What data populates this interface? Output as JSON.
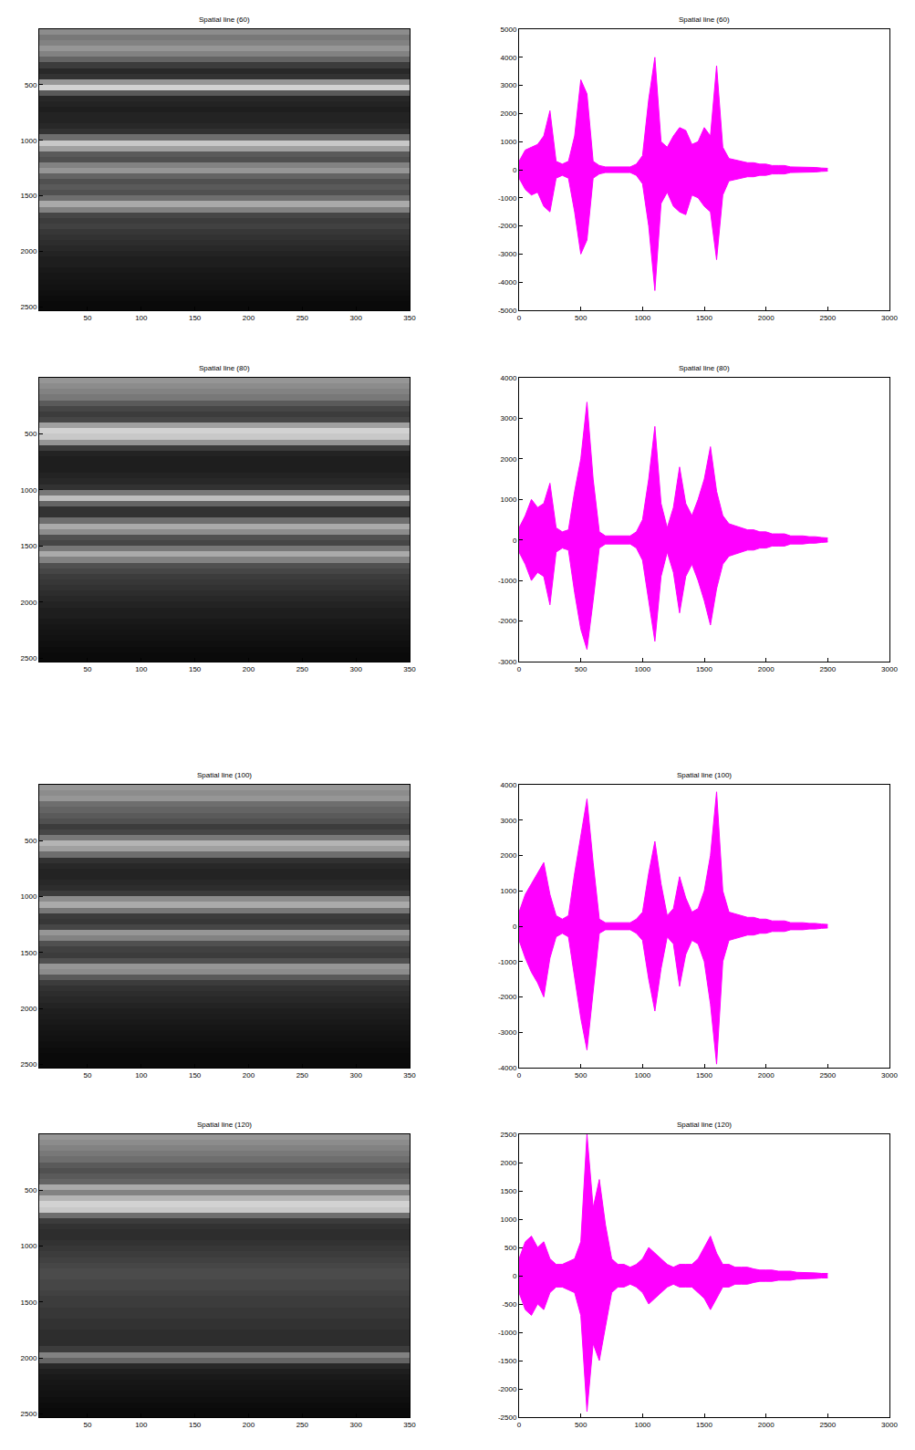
{
  "chart_data": [
    {
      "type": "heatmap",
      "title": "Spatial line (60)",
      "xlim": [
        5,
        350
      ],
      "xticks": [
        50,
        100,
        150,
        200,
        250,
        300,
        350
      ],
      "ylim": [
        0,
        2530
      ],
      "yticks": [
        500,
        1000,
        1500,
        2000,
        2500
      ],
      "grid": false,
      "zlim": [
        0,
        255
      ],
      "y": [
        25,
        75,
        125,
        175,
        225,
        275,
        325,
        375,
        425,
        475,
        525,
        575,
        625,
        675,
        725,
        775,
        825,
        875,
        925,
        975,
        1025,
        1075,
        1125,
        1175,
        1225,
        1275,
        1325,
        1375,
        1425,
        1475,
        1525,
        1575,
        1625,
        1675,
        1725,
        1775,
        1825,
        1875,
        1925,
        1975,
        2025,
        2075,
        2125,
        2175,
        2225,
        2275,
        2325,
        2375,
        2425,
        2475,
        2525
      ],
      "z": [
        140,
        120,
        130,
        150,
        130,
        100,
        60,
        40,
        50,
        150,
        210,
        90,
        40,
        35,
        30,
        35,
        35,
        40,
        50,
        110,
        200,
        160,
        90,
        80,
        130,
        150,
        100,
        80,
        90,
        80,
        110,
        170,
        130,
        70,
        60,
        65,
        55,
        50,
        45,
        40,
        35,
        30,
        30,
        25,
        22,
        20,
        18,
        15,
        12,
        10,
        10
      ]
    },
    {
      "type": "area",
      "title": "Spatial line (60)",
      "xlim": [
        0,
        3000
      ],
      "xticks": [
        0,
        500,
        1000,
        1500,
        2000,
        2500,
        3000
      ],
      "ylim": [
        -5000,
        5000
      ],
      "yticks": [
        -5000,
        -4000,
        -3000,
        -2000,
        -1000,
        0,
        1000,
        2000,
        3000,
        4000,
        5000
      ],
      "grid": false,
      "color": "#ff00ff",
      "x": [
        0,
        50,
        100,
        150,
        200,
        250,
        300,
        350,
        400,
        450,
        500,
        550,
        600,
        650,
        700,
        750,
        800,
        850,
        900,
        950,
        1000,
        1050,
        1100,
        1150,
        1200,
        1250,
        1300,
        1350,
        1400,
        1450,
        1500,
        1550,
        1600,
        1650,
        1700,
        1750,
        1800,
        1850,
        1900,
        1950,
        2000,
        2050,
        2100,
        2150,
        2200,
        2250,
        2300,
        2350,
        2400,
        2450,
        2500
      ],
      "upper": [
        300,
        700,
        800,
        900,
        1200,
        2100,
        300,
        200,
        300,
        1200,
        3200,
        2700,
        300,
        150,
        100,
        100,
        100,
        100,
        100,
        200,
        500,
        2500,
        4000,
        1000,
        800,
        1200,
        1500,
        1400,
        900,
        1000,
        1500,
        1200,
        3700,
        800,
        400,
        350,
        300,
        250,
        250,
        200,
        200,
        150,
        150,
        150,
        100,
        100,
        100,
        80,
        80,
        60,
        50
      ],
      "lower": [
        -300,
        -700,
        -900,
        -800,
        -1300,
        -1500,
        -300,
        -200,
        -300,
        -1500,
        -3000,
        -2500,
        -300,
        -150,
        -100,
        -100,
        -100,
        -100,
        -100,
        -200,
        -500,
        -2000,
        -4300,
        -1200,
        -800,
        -1300,
        -1500,
        -1600,
        -900,
        -1000,
        -1300,
        -1500,
        -3200,
        -900,
        -400,
        -350,
        -300,
        -250,
        -250,
        -200,
        -200,
        -150,
        -150,
        -150,
        -100,
        -100,
        -100,
        -80,
        -80,
        -60,
        -50
      ]
    },
    {
      "type": "heatmap",
      "title": "Spatial line (80)",
      "xlim": [
        5,
        350
      ],
      "xticks": [
        50,
        100,
        150,
        200,
        250,
        300,
        350
      ],
      "ylim": [
        0,
        2530
      ],
      "yticks": [
        500,
        1000,
        1500,
        2000,
        2500
      ],
      "grid": false,
      "zlim": [
        0,
        255
      ],
      "y": [
        25,
        75,
        125,
        175,
        225,
        275,
        325,
        375,
        425,
        475,
        525,
        575,
        625,
        675,
        725,
        775,
        825,
        875,
        925,
        975,
        1025,
        1075,
        1125,
        1175,
        1225,
        1275,
        1325,
        1375,
        1425,
        1475,
        1525,
        1575,
        1625,
        1675,
        1725,
        1775,
        1825,
        1875,
        1925,
        1975,
        2025,
        2075,
        2125,
        2175,
        2225,
        2275,
        2325,
        2375,
        2425,
        2475,
        2525
      ],
      "z": [
        150,
        140,
        130,
        120,
        90,
        70,
        60,
        70,
        160,
        210,
        200,
        150,
        60,
        35,
        30,
        30,
        30,
        35,
        40,
        50,
        120,
        190,
        100,
        50,
        50,
        110,
        170,
        140,
        80,
        70,
        120,
        170,
        130,
        80,
        70,
        60,
        55,
        50,
        45,
        40,
        35,
        30,
        30,
        25,
        22,
        20,
        18,
        15,
        12,
        10,
        10
      ]
    },
    {
      "type": "area",
      "title": "Spatial line (80)",
      "xlim": [
        0,
        3000
      ],
      "xticks": [
        0,
        500,
        1000,
        1500,
        2000,
        2500,
        3000
      ],
      "ylim": [
        -3000,
        4000
      ],
      "yticks": [
        -3000,
        -2000,
        -1000,
        0,
        1000,
        2000,
        3000,
        4000
      ],
      "grid": false,
      "color": "#ff00ff",
      "x": [
        0,
        50,
        100,
        150,
        200,
        250,
        300,
        350,
        400,
        450,
        500,
        550,
        600,
        650,
        700,
        750,
        800,
        850,
        900,
        950,
        1000,
        1050,
        1100,
        1150,
        1200,
        1250,
        1300,
        1350,
        1400,
        1450,
        1500,
        1550,
        1600,
        1650,
        1700,
        1750,
        1800,
        1850,
        1900,
        1950,
        2000,
        2050,
        2100,
        2150,
        2200,
        2250,
        2300,
        2350,
        2400,
        2450,
        2500
      ],
      "upper": [
        300,
        600,
        1000,
        800,
        900,
        1400,
        300,
        200,
        250,
        1200,
        2000,
        3400,
        1500,
        200,
        100,
        100,
        100,
        100,
        100,
        200,
        500,
        1500,
        2800,
        900,
        300,
        800,
        1800,
        900,
        600,
        1000,
        1500,
        2300,
        1200,
        600,
        400,
        350,
        300,
        250,
        250,
        200,
        200,
        150,
        150,
        150,
        100,
        100,
        100,
        80,
        80,
        60,
        50
      ],
      "lower": [
        -300,
        -600,
        -1000,
        -800,
        -900,
        -1600,
        -300,
        -200,
        -250,
        -1300,
        -2200,
        -2700,
        -1500,
        -200,
        -100,
        -100,
        -100,
        -100,
        -100,
        -200,
        -500,
        -1500,
        -2500,
        -900,
        -300,
        -800,
        -1800,
        -900,
        -600,
        -1000,
        -1500,
        -2100,
        -1200,
        -600,
        -400,
        -350,
        -300,
        -250,
        -250,
        -200,
        -200,
        -150,
        -150,
        -150,
        -100,
        -100,
        -100,
        -80,
        -80,
        -60,
        -50
      ]
    },
    {
      "type": "heatmap",
      "title": "Spatial line (100)",
      "xlim": [
        5,
        350
      ],
      "xticks": [
        50,
        100,
        150,
        200,
        250,
        300,
        350
      ],
      "ylim": [
        0,
        2530
      ],
      "yticks": [
        500,
        1000,
        1500,
        2000,
        2500
      ],
      "grid": false,
      "zlim": [
        0,
        255
      ],
      "y": [
        25,
        75,
        125,
        175,
        225,
        275,
        325,
        375,
        425,
        475,
        525,
        575,
        625,
        675,
        725,
        775,
        825,
        875,
        925,
        975,
        1025,
        1075,
        1125,
        1175,
        1225,
        1275,
        1325,
        1375,
        1425,
        1475,
        1525,
        1575,
        1625,
        1675,
        1725,
        1775,
        1825,
        1875,
        1925,
        1975,
        2025,
        2075,
        2125,
        2175,
        2225,
        2275,
        2325,
        2375,
        2425,
        2475,
        2525
      ],
      "z": [
        150,
        140,
        150,
        110,
        100,
        90,
        80,
        60,
        70,
        120,
        180,
        160,
        110,
        50,
        40,
        35,
        35,
        40,
        45,
        60,
        140,
        170,
        120,
        60,
        55,
        70,
        150,
        130,
        80,
        65,
        60,
        80,
        150,
        140,
        90,
        60,
        50,
        45,
        40,
        35,
        30,
        28,
        25,
        22,
        20,
        18,
        15,
        12,
        10,
        10,
        10
      ]
    },
    {
      "type": "area",
      "title": "Spatial line (100)",
      "xlim": [
        0,
        3000
      ],
      "xticks": [
        0,
        500,
        1000,
        1500,
        2000,
        2500,
        3000
      ],
      "ylim": [
        -4000,
        4000
      ],
      "yticks": [
        -4000,
        -3000,
        -2000,
        -1000,
        0,
        1000,
        2000,
        3000,
        4000
      ],
      "grid": false,
      "color": "#ff00ff",
      "x": [
        0,
        50,
        100,
        150,
        200,
        250,
        300,
        350,
        400,
        450,
        500,
        550,
        600,
        650,
        700,
        750,
        800,
        850,
        900,
        950,
        1000,
        1050,
        1100,
        1150,
        1200,
        1250,
        1300,
        1350,
        1400,
        1450,
        1500,
        1550,
        1600,
        1650,
        1700,
        1750,
        1800,
        1850,
        1900,
        1950,
        2000,
        2050,
        2100,
        2150,
        2200,
        2250,
        2300,
        2350,
        2400,
        2450,
        2500
      ],
      "upper": [
        400,
        900,
        1200,
        1500,
        1800,
        900,
        300,
        200,
        300,
        1500,
        2500,
        3600,
        1800,
        200,
        100,
        100,
        100,
        100,
        100,
        200,
        400,
        1500,
        2400,
        1200,
        300,
        500,
        1400,
        800,
        400,
        500,
        1000,
        2000,
        3800,
        1000,
        400,
        350,
        300,
        250,
        250,
        200,
        200,
        150,
        150,
        150,
        100,
        100,
        100,
        80,
        80,
        60,
        50
      ],
      "lower": [
        -400,
        -900,
        -1300,
        -1600,
        -2000,
        -900,
        -300,
        -200,
        -300,
        -1500,
        -2600,
        -3500,
        -1800,
        -200,
        -100,
        -100,
        -100,
        -100,
        -100,
        -200,
        -400,
        -1500,
        -2400,
        -1200,
        -300,
        -500,
        -1700,
        -800,
        -400,
        -500,
        -1000,
        -2200,
        -3900,
        -1000,
        -400,
        -350,
        -300,
        -250,
        -250,
        -200,
        -200,
        -150,
        -150,
        -150,
        -100,
        -100,
        -100,
        -80,
        -80,
        -60,
        -50
      ]
    },
    {
      "type": "heatmap",
      "title": "Spatial line (120)",
      "xlim": [
        5,
        350
      ],
      "xticks": [
        50,
        100,
        150,
        200,
        250,
        300,
        350
      ],
      "ylim": [
        0,
        2530
      ],
      "yticks": [
        500,
        1000,
        1500,
        2000,
        2500
      ],
      "grid": false,
      "zlim": [
        0,
        255
      ],
      "y": [
        25,
        75,
        125,
        175,
        225,
        275,
        325,
        375,
        425,
        475,
        525,
        575,
        625,
        675,
        725,
        775,
        825,
        875,
        925,
        975,
        1025,
        1075,
        1125,
        1175,
        1225,
        1275,
        1325,
        1375,
        1425,
        1475,
        1525,
        1575,
        1625,
        1675,
        1725,
        1775,
        1825,
        1875,
        1925,
        1975,
        2025,
        2075,
        2125,
        2175,
        2225,
        2275,
        2325,
        2375,
        2425,
        2475,
        2525
      ],
      "z": [
        150,
        140,
        130,
        120,
        110,
        90,
        80,
        90,
        100,
        170,
        130,
        180,
        210,
        200,
        110,
        60,
        50,
        45,
        45,
        50,
        55,
        60,
        65,
        70,
        75,
        75,
        70,
        70,
        65,
        60,
        60,
        55,
        55,
        50,
        50,
        45,
        45,
        45,
        60,
        130,
        100,
        40,
        30,
        25,
        22,
        20,
        18,
        15,
        12,
        10,
        10
      ]
    },
    {
      "type": "area",
      "title": "Spatial line (120)",
      "xlim": [
        0,
        3000
      ],
      "xticks": [
        0,
        500,
        1000,
        1500,
        2000,
        2500,
        3000
      ],
      "ylim": [
        -2500,
        2500
      ],
      "yticks": [
        -2500,
        -2000,
        -1500,
        -1000,
        -500,
        0,
        500,
        1000,
        1500,
        2000,
        2500
      ],
      "grid": false,
      "color": "#ff00ff",
      "x": [
        0,
        50,
        100,
        150,
        200,
        250,
        300,
        350,
        400,
        450,
        500,
        550,
        600,
        650,
        700,
        750,
        800,
        850,
        900,
        950,
        1000,
        1050,
        1100,
        1150,
        1200,
        1250,
        1300,
        1350,
        1400,
        1450,
        1500,
        1550,
        1600,
        1650,
        1700,
        1750,
        1800,
        1850,
        1900,
        1950,
        2000,
        2050,
        2100,
        2150,
        2200,
        2250,
        2300,
        2350,
        2400,
        2450,
        2500
      ],
      "upper": [
        300,
        600,
        700,
        500,
        600,
        300,
        200,
        200,
        250,
        300,
        600,
        2500,
        1200,
        1700,
        900,
        300,
        200,
        200,
        150,
        200,
        300,
        500,
        400,
        300,
        200,
        150,
        200,
        200,
        200,
        300,
        500,
        700,
        400,
        200,
        200,
        150,
        150,
        150,
        120,
        100,
        100,
        100,
        80,
        80,
        80,
        60,
        60,
        50,
        50,
        40,
        40
      ],
      "lower": [
        -300,
        -600,
        -700,
        -500,
        -600,
        -300,
        -200,
        -200,
        -250,
        -300,
        -700,
        -2400,
        -1200,
        -1500,
        -900,
        -300,
        -200,
        -200,
        -150,
        -200,
        -300,
        -500,
        -400,
        -300,
        -200,
        -150,
        -200,
        -200,
        -200,
        -300,
        -400,
        -600,
        -400,
        -200,
        -200,
        -150,
        -150,
        -150,
        -120,
        -100,
        -100,
        -100,
        -80,
        -80,
        -80,
        -60,
        -60,
        -50,
        -50,
        -40,
        -40
      ]
    }
  ]
}
